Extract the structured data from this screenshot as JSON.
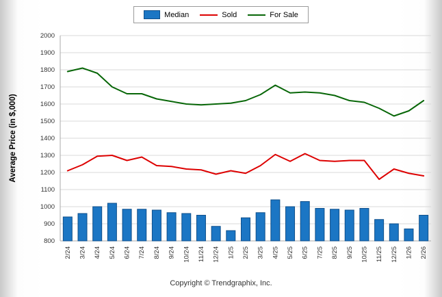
{
  "legend": {
    "items": [
      {
        "label": "Median",
        "swatch": "bar"
      },
      {
        "label": "Sold",
        "swatch": "line"
      },
      {
        "label": "For Sale",
        "swatch": "line"
      }
    ]
  },
  "footer": {
    "copyright": "Copyright © Trendgraphix, Inc."
  },
  "chart_data": {
    "type": "bar",
    "subtype": "combo-bar-line",
    "title": "",
    "xlabel": "",
    "ylabel": "Average Price (in $,000)",
    "ylim": [
      800,
      2000
    ],
    "ytick_step": 100,
    "grid": true,
    "legend_position": "top",
    "categories": [
      "2/24",
      "3/24",
      "4/24",
      "5/24",
      "6/24",
      "7/24",
      "8/24",
      "9/24",
      "10/24",
      "11/24",
      "12/24",
      "1/25",
      "2/25",
      "3/25",
      "4/25",
      "5/25",
      "6/25",
      "7/25",
      "8/25",
      "9/25",
      "10/25",
      "11/25",
      "12/25",
      "1/26",
      "2/26"
    ],
    "series": [
      {
        "name": "Median",
        "type": "bar",
        "color": "#1b76c4",
        "border_color": "#0f4f8a",
        "values": [
          940,
          960,
          1000,
          1020,
          985,
          985,
          980,
          965,
          960,
          950,
          885,
          860,
          935,
          965,
          1040,
          1000,
          1030,
          990,
          985,
          980,
          990,
          925,
          900,
          870,
          950
        ]
      },
      {
        "name": "Sold",
        "type": "line",
        "color": "#dd0000",
        "values": [
          1210,
          1245,
          1295,
          1300,
          1270,
          1290,
          1240,
          1235,
          1220,
          1215,
          1190,
          1210,
          1195,
          1240,
          1305,
          1265,
          1310,
          1270,
          1265,
          1270,
          1270,
          1160,
          1220,
          1195,
          1180
        ]
      },
      {
        "name": "For Sale",
        "type": "line",
        "color": "#076607",
        "values": [
          1790,
          1810,
          1780,
          1700,
          1660,
          1660,
          1630,
          1615,
          1600,
          1595,
          1600,
          1605,
          1620,
          1655,
          1710,
          1665,
          1670,
          1665,
          1650,
          1620,
          1610,
          1575,
          1530,
          1560,
          1620
        ]
      }
    ],
    "colors": {
      "gridline": "#d8d8d8",
      "axis": "#a8a8a8",
      "tick_label": "#333333"
    }
  }
}
